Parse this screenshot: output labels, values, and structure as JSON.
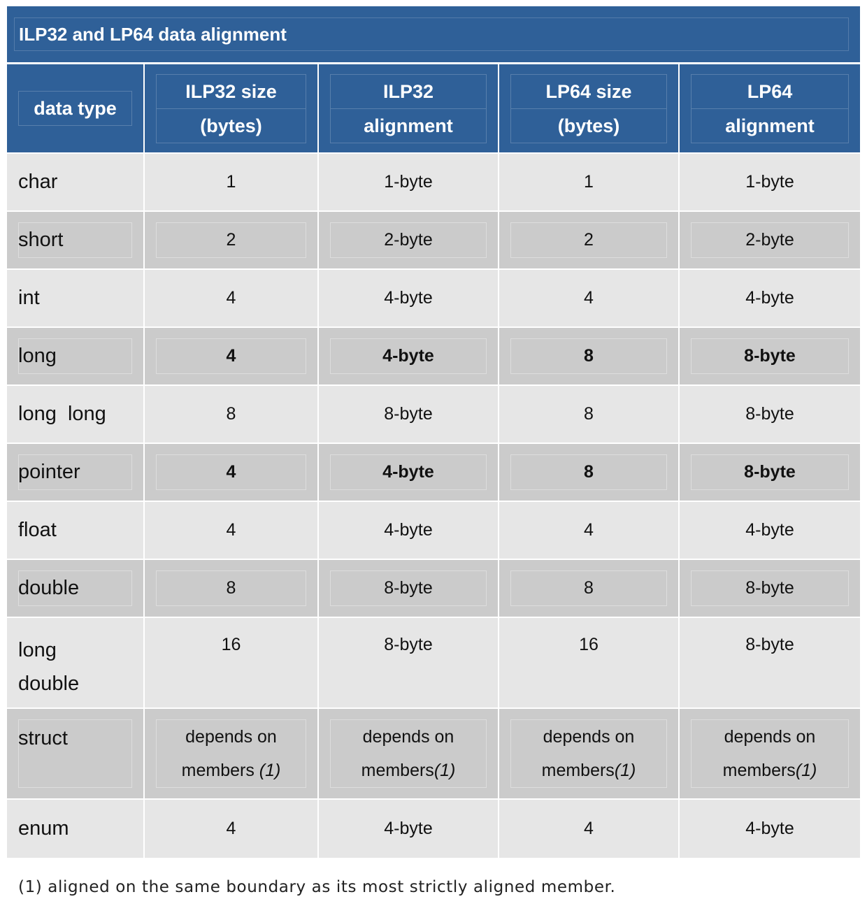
{
  "table": {
    "title": "ILP32 and LP64 data alignment",
    "headers": [
      [
        "data type"
      ],
      [
        "ILP32 size",
        "(bytes)"
      ],
      [
        "ILP32",
        "alignment"
      ],
      [
        "LP64 size",
        "(bytes)"
      ],
      [
        "LP64",
        "alignment"
      ]
    ],
    "rows": [
      {
        "type": "char",
        "ilp32_size": "1",
        "ilp32_align": "1-byte",
        "lp64_size": "1",
        "lp64_align": "1-byte"
      },
      {
        "type": "short",
        "ilp32_size": "2",
        "ilp32_align": "2-byte",
        "lp64_size": "2",
        "lp64_align": "2-byte"
      },
      {
        "type": "int",
        "ilp32_size": "4",
        "ilp32_align": "4-byte",
        "lp64_size": "4",
        "lp64_align": "4-byte"
      },
      {
        "type": "long",
        "ilp32_size": "4",
        "ilp32_align": "4-byte",
        "lp64_size": "8",
        "lp64_align": "8-byte"
      },
      {
        "type": "long  long",
        "ilp32_size": "8",
        "ilp32_align": "8-byte",
        "lp64_size": "8",
        "lp64_align": "8-byte"
      },
      {
        "type": "pointer",
        "ilp32_size": "4",
        "ilp32_align": "4-byte",
        "lp64_size": "8",
        "lp64_align": "8-byte"
      },
      {
        "type": "float",
        "ilp32_size": "4",
        "ilp32_align": "4-byte",
        "lp64_size": "4",
        "lp64_align": "4-byte"
      },
      {
        "type": "double",
        "ilp32_size": "8",
        "ilp32_align": "8-byte",
        "lp64_size": "8",
        "lp64_align": "8-byte"
      },
      {
        "type_lines": [
          "long",
          "double"
        ],
        "ilp32_size": "16",
        "ilp32_align": "8-byte",
        "lp64_size": "16",
        "lp64_align": "8-byte"
      },
      {
        "type": "struct",
        "ilp32_size_lines": [
          "depends on",
          "members",
          "(1)"
        ],
        "ilp32_align_lines": [
          "depends on",
          "members",
          "(1)"
        ],
        "lp64_size_lines": [
          "depends on",
          "members",
          "(1)"
        ],
        "lp64_align_lines": [
          "depends on",
          "members",
          "(1)"
        ]
      },
      {
        "type": "enum",
        "ilp32_size": "4",
        "ilp32_align": "4-byte",
        "lp64_size": "4",
        "lp64_align": "4-byte"
      }
    ]
  },
  "footnote": "(1) aligned on the same boundary as its most strictly aligned member."
}
